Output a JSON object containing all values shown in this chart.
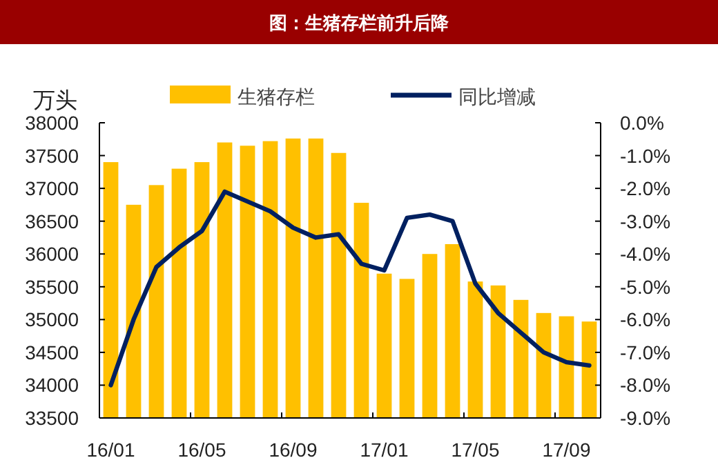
{
  "chart_data": {
    "type": "bar",
    "title": "图：生猪存栏前升后降",
    "ylabel": "万头",
    "categories": [
      "16/01",
      null,
      null,
      null,
      "16/05",
      null,
      null,
      null,
      "16/09",
      null,
      null,
      null,
      "17/01",
      null,
      null,
      null,
      "17/05",
      null,
      null,
      null,
      "17/09",
      null
    ],
    "series": [
      {
        "name": "生猪存栏",
        "color": "#ffc000",
        "values": [
          37400,
          36750,
          37050,
          37300,
          37400,
          37700,
          37650,
          37720,
          37760,
          37760,
          37540,
          36780,
          35700,
          35620,
          36000,
          36150,
          35580,
          35520,
          35300,
          35100,
          35050,
          34970
        ]
      },
      {
        "name": "同比增减",
        "type": "line",
        "axis": "y2",
        "color": "#002060",
        "values": [
          -8.0,
          -6.0,
          -4.4,
          -3.8,
          -3.3,
          -2.1,
          -2.4,
          -2.7,
          -3.2,
          -3.5,
          -3.4,
          -4.3,
          -4.5,
          -2.9,
          -2.8,
          -3.0,
          -4.9,
          -5.8,
          -6.4,
          -7.0,
          -7.3,
          -7.4
        ]
      }
    ],
    "ylim": [
      33500,
      38000
    ],
    "yticks": [
      33500,
      34000,
      34500,
      35000,
      35500,
      36000,
      36500,
      37000,
      37500,
      38000
    ],
    "y2lim": [
      -9,
      0
    ],
    "y2ticks": [
      {
        "value": 0,
        "label": "0.0%"
      },
      {
        "value": -1,
        "label": "-1.0%"
      },
      {
        "value": -2,
        "label": "-2.0%"
      },
      {
        "value": -3,
        "label": "-3.0%"
      },
      {
        "value": -4,
        "label": "-4.0%"
      },
      {
        "value": -5,
        "label": "-5.0%"
      },
      {
        "value": -6,
        "label": "-6.0%"
      },
      {
        "value": -7,
        "label": "-7.0%"
      },
      {
        "value": -8,
        "label": "-8.0%"
      },
      {
        "value": -9,
        "label": "-9.0%"
      }
    ],
    "legend": "top",
    "grid": false
  }
}
